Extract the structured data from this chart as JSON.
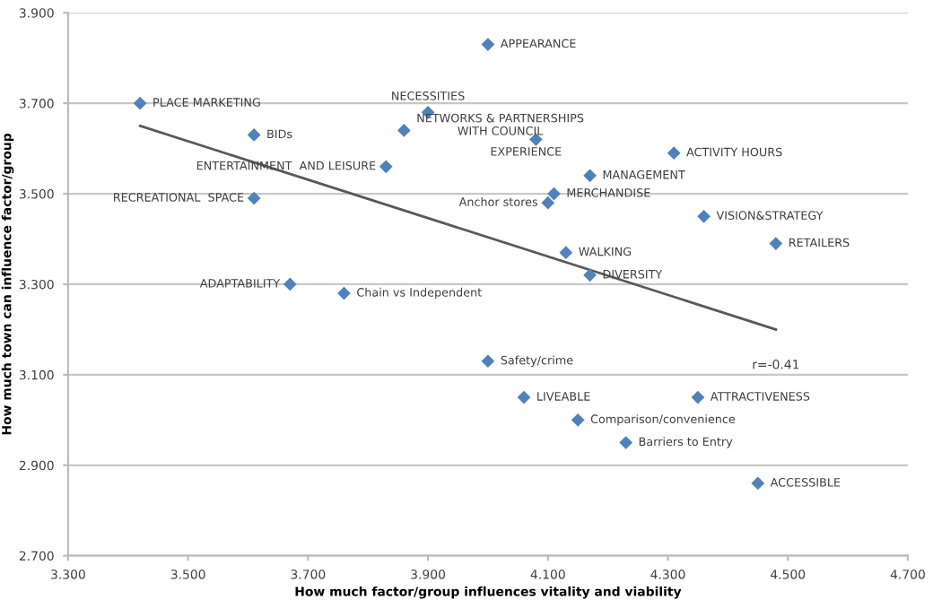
{
  "chart_data": {
    "type": "scatter",
    "xlabel": "How much factor/group influences vitality and viability",
    "ylabel": "How much town can influence factor/group",
    "xlim": [
      3.3,
      4.7
    ],
    "ylim": [
      2.7,
      3.9
    ],
    "xticks": [
      {
        "value": 3.3,
        "label": "3.300"
      },
      {
        "value": 3.5,
        "label": "3.500"
      },
      {
        "value": 3.7,
        "label": "3.700"
      },
      {
        "value": 3.9,
        "label": "3.900"
      },
      {
        "value": 4.1,
        "label": "4.100"
      },
      {
        "value": 4.3,
        "label": "4.300"
      },
      {
        "value": 4.5,
        "label": "4.500"
      },
      {
        "value": 4.7,
        "label": "4.700"
      }
    ],
    "yticks": [
      {
        "value": 2.7,
        "label": "2.700"
      },
      {
        "value": 2.9,
        "label": "2.900"
      },
      {
        "value": 3.1,
        "label": "3.100"
      },
      {
        "value": 3.3,
        "label": "3.300"
      },
      {
        "value": 3.5,
        "label": "3.500"
      },
      {
        "value": 3.7,
        "label": "3.700"
      },
      {
        "value": 3.9,
        "label": "3.900"
      }
    ],
    "grid": "y",
    "legend": false,
    "marker": "diamond",
    "series": [
      {
        "color": "#4f81bd",
        "x": [
          3.42,
          3.61,
          3.9,
          3.86,
          4.08,
          3.83,
          3.61,
          3.67,
          3.76,
          4.0,
          4.31,
          4.17,
          4.11,
          4.1,
          4.36,
          4.48,
          4.13,
          4.17,
          4.0,
          4.06,
          4.35,
          4.15,
          4.23,
          4.45
        ],
        "values": [
          3.7,
          3.63,
          3.68,
          3.64,
          3.62,
          3.56,
          3.49,
          3.3,
          3.28,
          3.83,
          3.59,
          3.54,
          3.5,
          3.48,
          3.45,
          3.39,
          3.37,
          3.32,
          3.13,
          3.05,
          3.05,
          3.0,
          2.95,
          2.86
        ]
      },
      {
        "type": "line",
        "color": "#595959",
        "marker": "none",
        "x": [
          3.42,
          4.48
        ],
        "values": [
          3.65,
          3.2
        ]
      }
    ],
    "annotations": [
      {
        "text": "PLACE MARKETING",
        "x": 3.42,
        "y": 3.7
      },
      {
        "text": "BIDs",
        "x": 3.61,
        "y": 3.63
      },
      {
        "text": "NECESSITIES",
        "x": 3.9,
        "y": 3.68
      },
      {
        "text": "NETWORKS & PARTNERSHIPS\nWITH COUNCIL",
        "x": 3.86,
        "y": 3.64
      },
      {
        "text": "EXPERIENCE",
        "x": 4.08,
        "y": 3.62
      },
      {
        "text": "ENTERTAINMENT  AND LEISURE",
        "x": 3.83,
        "y": 3.56
      },
      {
        "text": "RECREATIONAL  SPACE",
        "x": 3.61,
        "y": 3.49
      },
      {
        "text": "ADAPTABILITY",
        "x": 3.67,
        "y": 3.3
      },
      {
        "text": "Chain vs Independent",
        "x": 3.76,
        "y": 3.28
      },
      {
        "text": "APPEARANCE",
        "x": 4.0,
        "y": 3.83
      },
      {
        "text": "ACTIVITY HOURS",
        "x": 4.31,
        "y": 3.59
      },
      {
        "text": "MANAGEMENT",
        "x": 4.17,
        "y": 3.54
      },
      {
        "text": "MERCHANDISE",
        "x": 4.11,
        "y": 3.5
      },
      {
        "text": "Anchor stores",
        "x": 4.1,
        "y": 3.48
      },
      {
        "text": "VISION&STRATEGY",
        "x": 4.36,
        "y": 3.45
      },
      {
        "text": "RETAILERS",
        "x": 4.48,
        "y": 3.39
      },
      {
        "text": "WALKING",
        "x": 4.13,
        "y": 3.37
      },
      {
        "text": "DIVERSITY",
        "x": 4.17,
        "y": 3.32
      },
      {
        "text": "Safety/crime",
        "x": 4.0,
        "y": 3.13
      },
      {
        "text": "LIVEABLE",
        "x": 4.06,
        "y": 3.05
      },
      {
        "text": "ATTRACTIVENESS",
        "x": 4.35,
        "y": 3.05
      },
      {
        "text": "Comparison/convenience",
        "x": 4.15,
        "y": 3.0
      },
      {
        "text": "Barriers to Entry",
        "x": 4.23,
        "y": 2.95
      },
      {
        "text": "ACCESSIBLE",
        "x": 4.45,
        "y": 2.86
      },
      "r=-0.41"
    ]
  }
}
